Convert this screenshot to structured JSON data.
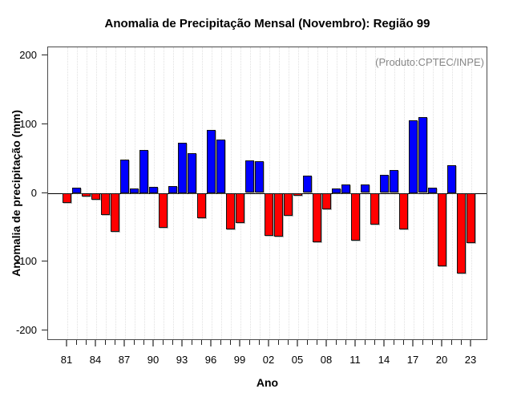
{
  "title": "Anomalia de Precipitação Mensal (Novembro): Região 99",
  "colors": {
    "positive_bar": "#0000FF",
    "negative_bar": "#FF0000",
    "bar_border": "#111111",
    "annotation_text": "#878787",
    "gridline": "#E0E0E0",
    "axis_box": "#4A4A4A"
  },
  "chart_data": {
    "type": "bar",
    "title": "Anomalia de Precipitação Mensal (Novembro): Região 99",
    "xlabel": "Ano",
    "ylabel": "Anomalia de precipitação (mm)",
    "annotation": "(Produto:CPTEC/INPE)",
    "ylim": [
      -215,
      212
    ],
    "yticks": [
      -200,
      -100,
      0,
      100,
      200
    ],
    "xtick_labels": [
      "81",
      "84",
      "87",
      "90",
      "93",
      "96",
      "99",
      "02",
      "05",
      "08",
      "11",
      "14",
      "17",
      "20",
      "23"
    ],
    "xtick_label_every": 3,
    "grid": "vertical-dotted",
    "legend": "none",
    "positive_color": "#0000FF",
    "negative_color": "#FF0000",
    "categories": [
      "81",
      "82",
      "83",
      "84",
      "85",
      "86",
      "87",
      "88",
      "89",
      "90",
      "91",
      "92",
      "93",
      "94",
      "95",
      "96",
      "97",
      "98",
      "99",
      "00",
      "01",
      "02",
      "03",
      "04",
      "05",
      "06",
      "07",
      "08",
      "09",
      "10",
      "11",
      "12",
      "13",
      "14",
      "15",
      "16",
      "17",
      "18",
      "19",
      "20",
      "21",
      "22",
      "23"
    ],
    "values": [
      -14,
      8,
      -5,
      -9,
      -31,
      -56,
      49,
      7,
      63,
      9,
      -50,
      10,
      73,
      58,
      -36,
      92,
      78,
      -52,
      -43,
      47,
      46,
      -62,
      -63,
      -33,
      -3,
      25,
      -71,
      -23,
      7,
      13,
      -69,
      12,
      -46,
      26,
      33,
      -53,
      106,
      110,
      8,
      -106,
      41,
      -117,
      -72
    ]
  }
}
